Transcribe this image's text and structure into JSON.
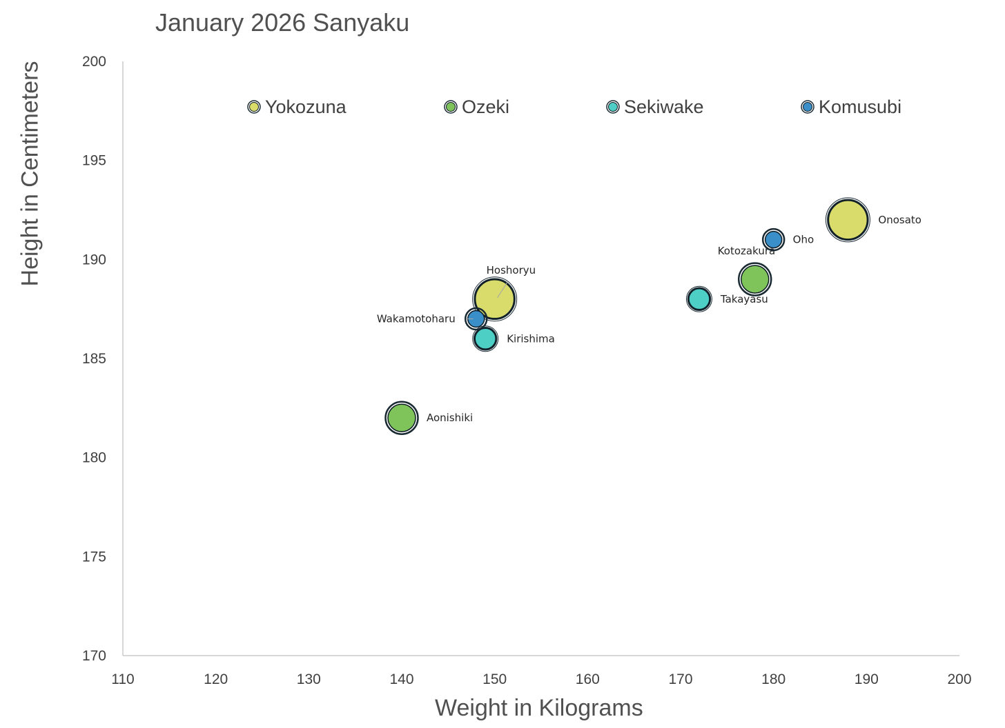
{
  "chart_data": {
    "type": "scatter",
    "title": "January 2026 Sanyaku",
    "xlabel": "Weight in Kilograms",
    "ylabel": "Height in Centimeters",
    "xlim": [
      110,
      200
    ],
    "ylim": [
      170,
      200
    ],
    "xticks": [
      110,
      120,
      130,
      140,
      150,
      160,
      170,
      180,
      190,
      200
    ],
    "yticks": [
      170,
      175,
      180,
      185,
      190,
      195,
      200
    ],
    "legend_position": "top",
    "series": [
      {
        "name": "Yokozuna",
        "color": "#D9DC6A",
        "points": [
          {
            "label": "Onosato",
            "x": 188,
            "y": 192,
            "label_side": "right"
          },
          {
            "label": "Hoshoryu",
            "x": 150,
            "y": 188,
            "label_side": "above"
          }
        ]
      },
      {
        "name": "Ozeki",
        "color": "#7EC45A",
        "points": [
          {
            "label": "Kotozakura",
            "x": 178,
            "y": 189,
            "label_side": "above"
          },
          {
            "label": "Aonishiki",
            "x": 140,
            "y": 182,
            "label_side": "right"
          }
        ]
      },
      {
        "name": "Sekiwake",
        "color": "#4ECFC5",
        "points": [
          {
            "label": "Takayasu",
            "x": 172,
            "y": 188,
            "label_side": "right"
          },
          {
            "label": "Kirishima",
            "x": 149,
            "y": 186,
            "label_side": "right"
          }
        ]
      },
      {
        "name": "Komusubi",
        "color": "#3A8FC8",
        "points": [
          {
            "label": "Oho",
            "x": 180,
            "y": 191,
            "label_side": "right"
          },
          {
            "label": "Wakamotoharu",
            "x": 148,
            "y": 187,
            "label_side": "left"
          }
        ]
      }
    ]
  }
}
